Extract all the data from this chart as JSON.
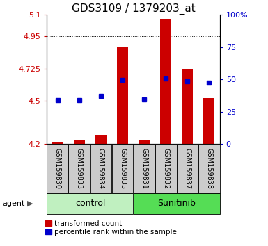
{
  "title": "GDS3109 / 1379203_at",
  "samples": [
    "GSM159830",
    "GSM159833",
    "GSM159834",
    "GSM159835",
    "GSM159831",
    "GSM159832",
    "GSM159837",
    "GSM159838"
  ],
  "red_values": [
    4.215,
    4.225,
    4.265,
    4.88,
    4.23,
    5.065,
    4.725,
    4.52
  ],
  "blue_values": [
    4.505,
    4.505,
    4.535,
    4.645,
    4.51,
    4.655,
    4.635,
    4.625
  ],
  "ylim_left": [
    4.2,
    5.1
  ],
  "ylim_right": [
    0,
    100
  ],
  "yticks_left": [
    4.2,
    4.5,
    4.725,
    4.95,
    5.1
  ],
  "yticks_right": [
    0,
    25,
    50,
    75,
    100
  ],
  "ytick_labels_left": [
    "4.2",
    "4.5",
    "4.725",
    "4.95",
    "5.1"
  ],
  "ytick_labels_right": [
    "0",
    "25",
    "50",
    "75",
    "100%"
  ],
  "groups": [
    {
      "label": "control",
      "indices": [
        0,
        1,
        2,
        3
      ],
      "color": "#c0f0c0"
    },
    {
      "label": "Sunitinib",
      "indices": [
        4,
        5,
        6,
        7
      ],
      "color": "#55dd55"
    }
  ],
  "bar_bottom": 4.2,
  "red_color": "#cc0000",
  "blue_color": "#0000cc",
  "title_fontsize": 11,
  "tick_fontsize": 8,
  "label_fontsize": 7,
  "group_fontsize": 9,
  "legend_fontsize": 7.5
}
